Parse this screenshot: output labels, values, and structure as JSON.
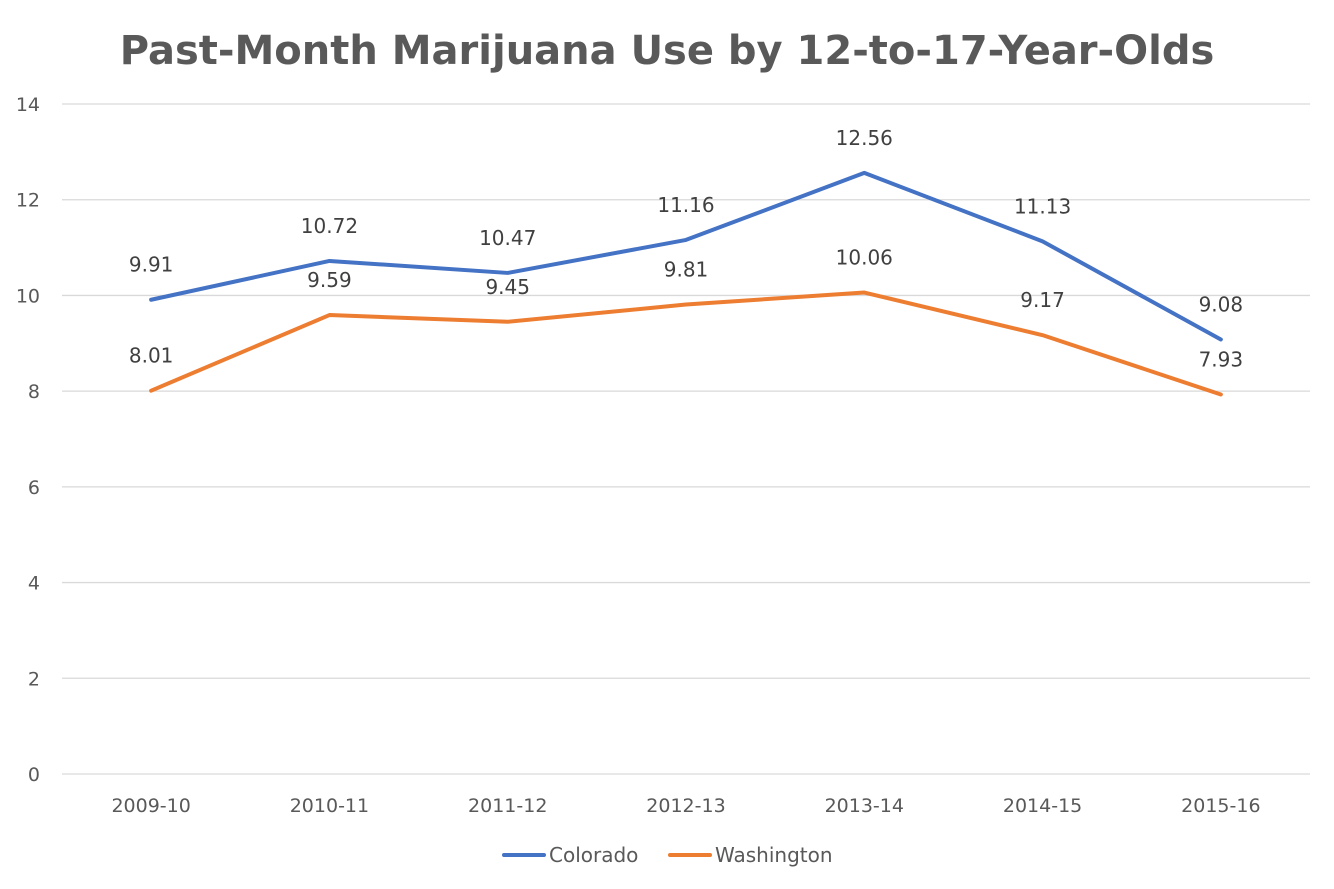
{
  "chart_data": {
    "type": "line",
    "title": "Past-Month Marijuana Use by 12-to-17-Year-Olds",
    "categories": [
      "2009-10",
      "2010-11",
      "2011-12",
      "2012-13",
      "2013-14",
      "2014-15",
      "2015-16"
    ],
    "series": [
      {
        "name": "Colorado",
        "color": "#4472c4",
        "values": [
          9.91,
          10.72,
          10.47,
          11.16,
          12.56,
          11.13,
          9.08
        ],
        "labels": [
          "9.91",
          "10.72",
          "10.47",
          "11.16",
          "12.56",
          "11.13",
          "9.08"
        ]
      },
      {
        "name": "Washington",
        "color": "#ed7d31",
        "values": [
          8.01,
          9.59,
          9.45,
          9.81,
          10.06,
          9.17,
          7.93
        ],
        "labels": [
          "8.01",
          "9.59",
          "9.45",
          "9.81",
          "10.06",
          "9.17",
          "7.93"
        ]
      }
    ],
    "ylim": [
      0,
      14
    ],
    "yticks": [
      "0",
      "2",
      "4",
      "6",
      "8",
      "10",
      "12",
      "14"
    ],
    "grid": true,
    "legend_position": "bottom"
  }
}
